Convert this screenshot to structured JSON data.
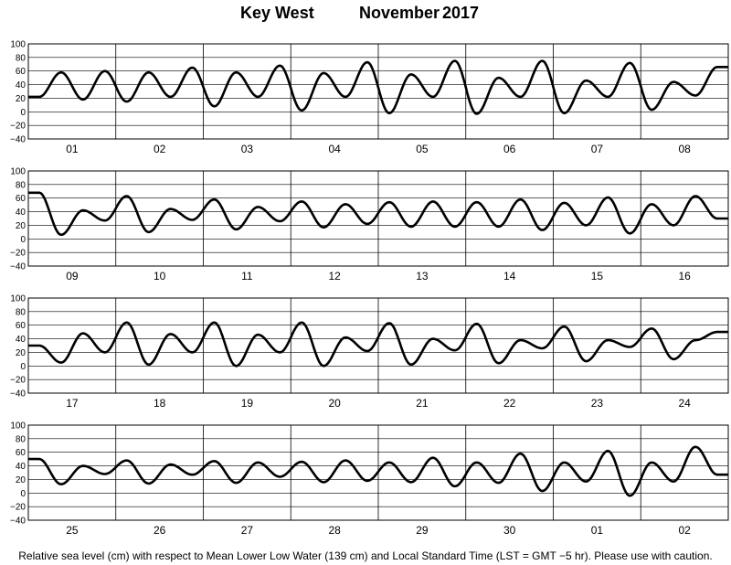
{
  "title": {
    "location": "Key West",
    "month": "November",
    "year": "2017"
  },
  "footnote": "Relative sea level (cm) with respect to Mean Lower Low Water (139 cm) and Local Standard Time (LST = GMT −5 hr). Please use with caution.",
  "colors": {
    "curve": "#000000",
    "grid": "#000000",
    "background": "#ffffff"
  },
  "chart_data": [
    {
      "type": "line",
      "ylim": [
        -40,
        100
      ],
      "yticks": [
        "100",
        "80",
        "60",
        "40",
        "20",
        "0",
        "−20",
        "−40"
      ],
      "days": [
        "01",
        "02",
        "03",
        "04",
        "05",
        "06",
        "07",
        "08"
      ],
      "series": [
        {
          "values": [
            22,
            58,
            18,
            60,
            15,
            58,
            22,
            65,
            8,
            58,
            22,
            68,
            2,
            57,
            22,
            73,
            -2,
            55,
            22,
            75,
            -3,
            50,
            22,
            75,
            -2,
            46,
            22,
            72,
            3,
            44,
            24,
            66
          ]
        }
      ]
    },
    {
      "type": "line",
      "ylim": [
        -40,
        100
      ],
      "yticks": [
        "100",
        "80",
        "60",
        "40",
        "20",
        "0",
        "−20",
        "−40"
      ],
      "days": [
        "09",
        "10",
        "11",
        "12",
        "13",
        "14",
        "15",
        "16"
      ],
      "series": [
        {
          "values": [
            68,
            6,
            42,
            27,
            63,
            10,
            44,
            28,
            58,
            14,
            47,
            26,
            55,
            17,
            51,
            22,
            54,
            18,
            55,
            18,
            54,
            18,
            58,
            13,
            53,
            20,
            61,
            8,
            51,
            20,
            63,
            30
          ]
        }
      ]
    },
    {
      "type": "line",
      "ylim": [
        -40,
        100
      ],
      "yticks": [
        "100",
        "80",
        "60",
        "40",
        "20",
        "0",
        "−20",
        "−40"
      ],
      "days": [
        "17",
        "18",
        "19",
        "20",
        "21",
        "22",
        "23",
        "24"
      ],
      "series": [
        {
          "values": [
            30,
            5,
            48,
            20,
            64,
            2,
            47,
            20,
            64,
            0,
            46,
            20,
            64,
            0,
            42,
            22,
            63,
            2,
            40,
            23,
            62,
            4,
            38,
            26,
            58,
            7,
            38,
            28,
            55,
            10,
            38,
            50
          ]
        }
      ]
    },
    {
      "type": "line",
      "ylim": [
        -40,
        100
      ],
      "yticks": [
        "100",
        "80",
        "60",
        "40",
        "20",
        "0",
        "−20",
        "−40"
      ],
      "days": [
        "25",
        "26",
        "27",
        "28",
        "29",
        "30",
        "01",
        "02"
      ],
      "series": [
        {
          "values": [
            50,
            13,
            40,
            28,
            48,
            14,
            42,
            27,
            47,
            15,
            45,
            24,
            46,
            16,
            48,
            18,
            45,
            16,
            52,
            10,
            45,
            15,
            58,
            3,
            45,
            17,
            62,
            -4,
            45,
            17,
            68,
            27
          ]
        }
      ]
    }
  ]
}
